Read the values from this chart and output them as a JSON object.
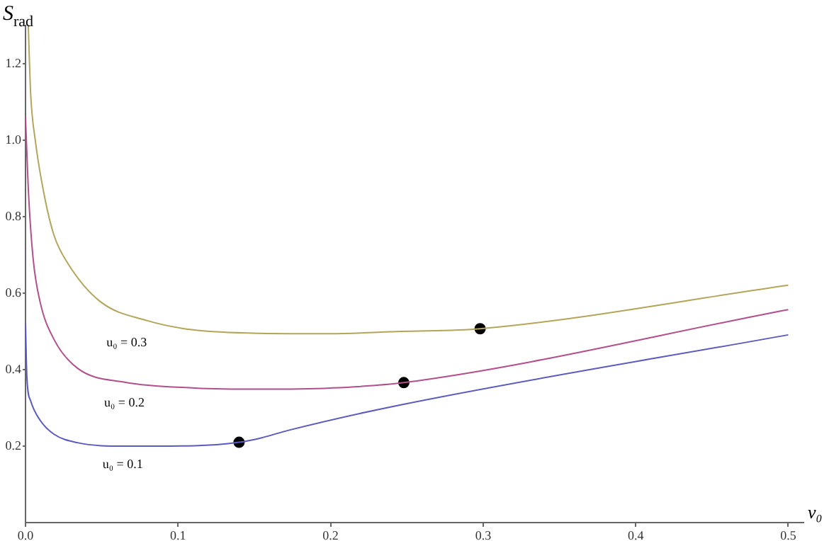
{
  "chart_data": {
    "type": "line",
    "xlabel": "v₀",
    "ylabel": "S$_{rad}$",
    "xlim": [
      0,
      0.51
    ],
    "ylim": [
      0,
      1.3
    ],
    "xticks": [
      {
        "value": 0,
        "label": "0.0"
      },
      0.1,
      0.2,
      0.3,
      0.4,
      0.5
    ],
    "yticks": [
      0.2,
      0.4,
      0.6,
      0.8,
      {
        "value": 1,
        "label": "1.0"
      },
      1.2
    ],
    "grid": false,
    "legend": false,
    "annotations": [
      "u₀ = 0.3",
      "u₀ = 0.2",
      "u₀ = 0.1"
    ],
    "series": [
      {
        "color": "#b3a55a",
        "x": [
          0.0018,
          0.0034,
          0.0064,
          0.0126,
          0.0187,
          0.0279,
          0.049,
          0.08,
          0.11,
          0.154,
          0.2,
          0.246,
          0.298,
          0.5
        ],
        "values": [
          1.3,
          1.12,
          1.0,
          0.85,
          0.751,
          0.677,
          0.578,
          0.528,
          0.504,
          0.495,
          0.494,
          0.5,
          0.507,
          0.621
        ]
      },
      {
        "color": "#b3508c",
        "x": [
          0,
          0.0018,
          0.005,
          0.0095,
          0.0187,
          0.034,
          0.065,
          0.111,
          0.154,
          0.2,
          0.248,
          0.5
        ],
        "values": [
          1.06,
          0.875,
          0.69,
          0.578,
          0.479,
          0.404,
          0.367,
          0.352,
          0.349,
          0.352,
          0.366,
          0.557
        ]
      },
      {
        "color": "#5a5ac0",
        "x": [
          0,
          0.0009,
          0.0034,
          0.0095,
          0.0187,
          0.034,
          0.065,
          0.111,
          0.14,
          0.154,
          0.172,
          0.246,
          0.5
        ],
        "values": [
          0.52,
          0.38,
          0.318,
          0.268,
          0.231,
          0.209,
          0.2,
          0.201,
          0.21,
          0.221,
          0.241,
          0.308,
          0.491
        ]
      },
      {
        "type": "scatter",
        "color": "#000000",
        "marker": "circle",
        "x": [
          0.14,
          0.248,
          0.298
        ],
        "values": [
          0.21,
          0.366,
          0.507
        ]
      }
    ]
  }
}
